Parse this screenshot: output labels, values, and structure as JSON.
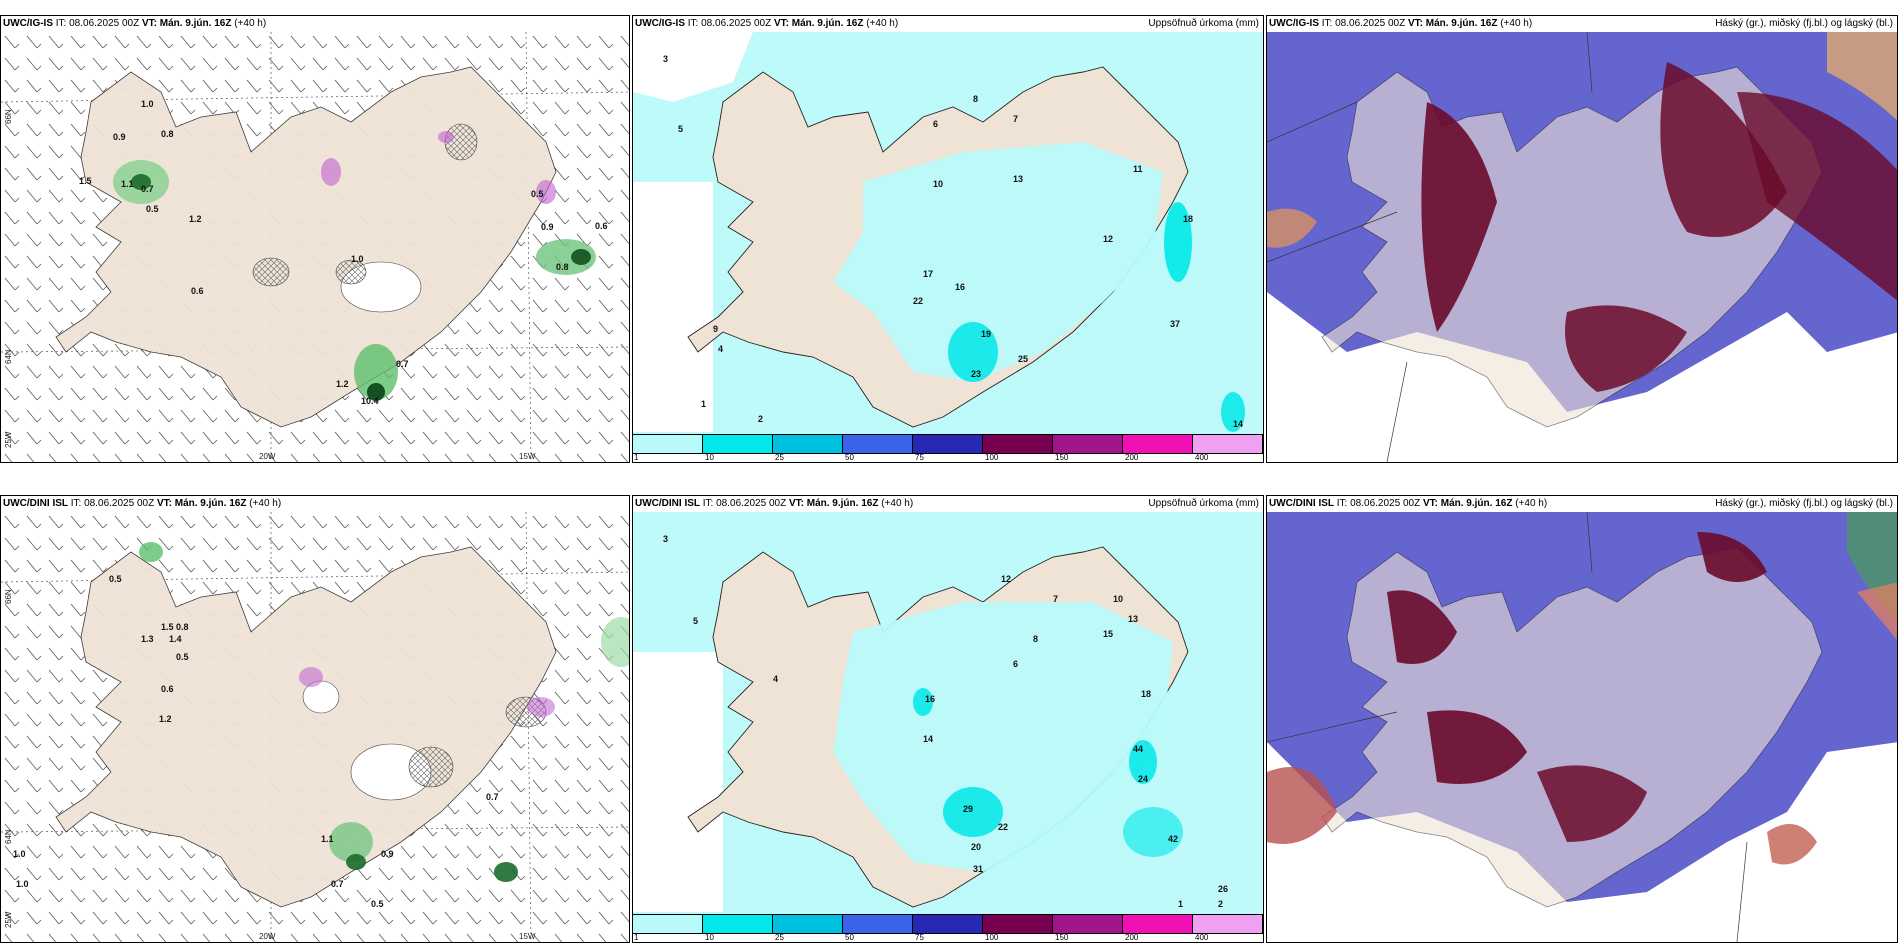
{
  "rows": [
    {
      "model": "UWC/IG-IS",
      "panels": [
        {
          "title_model": "UWC/IG-IS",
          "it_label": "IT: 08.06.2025 00Z",
          "vt_prefix": "VT:",
          "vt_value": "Mán. 9.jún. 16Z",
          "lead": "(+40 h)",
          "right_title": ""
        },
        {
          "title_model": "UWC/IG-IS",
          "it_label": "IT: 08.06.2025 00Z",
          "vt_prefix": "VT:",
          "vt_value": "Mán. 9.jún. 16Z",
          "lead": "(+40 h)",
          "right_title": "Uppsöfnuð úrkoma (mm)"
        },
        {
          "title_model": "UWC/IG-IS",
          "it_label": "IT: 08.06.2025 00Z",
          "vt_prefix": "VT:",
          "vt_value": "Mán. 9.jún. 16Z",
          "lead": "(+40 h)",
          "right_title": "Háský (gr.), miðský (fj.bl.) og lágský (bl.)"
        }
      ]
    },
    {
      "model": "UWC/DINI ISL",
      "panels": [
        {
          "title_model": "UWC/DINI ISL",
          "it_label": "IT: 08.06.2025 00Z",
          "vt_prefix": "VT:",
          "vt_value": "Mán. 9.jún. 16Z",
          "lead": "(+40 h)",
          "right_title": ""
        },
        {
          "title_model": "UWC/DINI ISL",
          "it_label": "IT: 08.06.2025 00Z",
          "vt_prefix": "VT:",
          "vt_value": "Mán. 9.jún. 16Z",
          "lead": "(+40 h)",
          "right_title": "Uppsöfnuð úrkoma (mm)"
        },
        {
          "title_model": "UWC/DINI ISL",
          "it_label": "IT: 08.06.2025 00Z",
          "vt_prefix": "VT:",
          "vt_value": "Mán. 9.jún. 16Z",
          "lead": "(+40 h)",
          "right_title": "Háský (gr.), miðský (fj.bl.) og lágský (bl.)"
        }
      ]
    }
  ],
  "axis_labels": {
    "lon_20w": "20W",
    "lon_15w": "15W",
    "lat_66n": "66N",
    "lat_64n": "64N",
    "lat_63n": "63N",
    "lon_25w": "25W"
  },
  "colorbar": {
    "ticks": [
      "1",
      "10",
      "25",
      "50",
      "75",
      "100",
      "150",
      "200",
      "400"
    ],
    "colors": [
      "#b8fafa",
      "#00e8e8",
      "#00c0e0",
      "#3c64e8",
      "#2828b4",
      "#780050",
      "#a0148c",
      "#f010b4",
      "#f0a0f0"
    ]
  },
  "precip_values_top": [
    "3",
    "5",
    "6",
    "7",
    "8",
    "10",
    "11",
    "12",
    "13",
    "16",
    "17",
    "18",
    "19",
    "22",
    "23",
    "25",
    "37",
    "14",
    "2",
    "1",
    "4",
    "9"
  ],
  "precip_values_bottom": [
    "3",
    "4",
    "5",
    "6",
    "7",
    "8",
    "10",
    "12",
    "13",
    "14",
    "15",
    "16",
    "18",
    "20",
    "22",
    "24",
    "29",
    "31",
    "42",
    "44",
    "26",
    "1",
    "2"
  ],
  "wind_values_top": [
    "1.0",
    "0.8",
    "0.9",
    "1.5",
    "1.1",
    "0.7",
    "0.5",
    "1.2",
    "0.6",
    "0.7",
    "0.6",
    "0.9",
    "1.0",
    "0.8",
    "0.5",
    "1.2",
    "10.4"
  ],
  "wind_values_bottom": [
    "0.5",
    "1.0",
    "1.3",
    "1.4",
    "0.5",
    "0.6",
    "1.1",
    "0.9",
    "0.7",
    "0.8",
    "1.5",
    "1.2",
    "0.5",
    "0.7",
    "1.0"
  ],
  "colors": {
    "land": "#efe3d5",
    "light_cyan": "#b8fafa",
    "cyan": "#00e8e8",
    "high_cloud": "#6a0a2a",
    "mid_cloud": "#3c3cc8",
    "low_cloud": "#d89060",
    "green": "#2a8a3a",
    "purple": "#c060d0"
  }
}
